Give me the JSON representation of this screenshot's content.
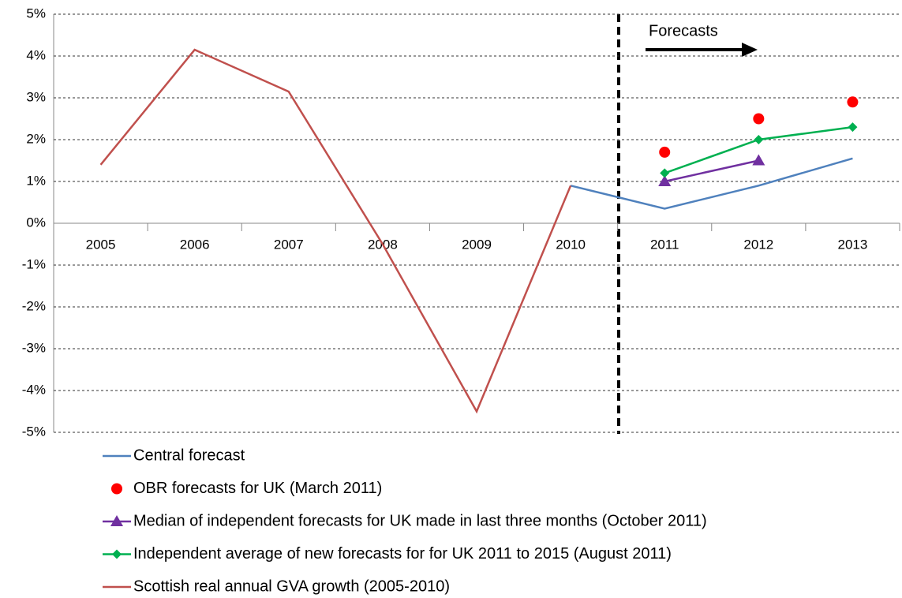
{
  "chart_data": {
    "type": "line",
    "annotation": "Forecasts",
    "categories": [
      "2005",
      "2006",
      "2007",
      "2008",
      "2009",
      "2010",
      "2011",
      "2012",
      "2013"
    ],
    "ylim": [
      -5,
      5
    ],
    "yticks": [
      {
        "value": -5,
        "label": "-5%"
      },
      {
        "value": -4,
        "label": "-4%"
      },
      {
        "value": -3,
        "label": "-3%"
      },
      {
        "value": -2,
        "label": "-2%"
      },
      {
        "value": -1,
        "label": "-1%"
      },
      {
        "value": 0,
        "label": "0%"
      },
      {
        "value": 1,
        "label": "1%"
      },
      {
        "value": 2,
        "label": "2%"
      },
      {
        "value": 3,
        "label": "3%"
      },
      {
        "value": 4,
        "label": "4%"
      },
      {
        "value": 5,
        "label": "5%"
      }
    ],
    "grid": true,
    "series": [
      {
        "name": "Central forecast",
        "color": "#4f81bd",
        "line": true,
        "marker": "none",
        "values": [
          null,
          null,
          null,
          null,
          null,
          0.9,
          0.35,
          0.9,
          1.55
        ]
      },
      {
        "name": "OBR forecasts for UK (March 2011)",
        "color": "#ff0000",
        "line": false,
        "marker": "circle",
        "values": [
          null,
          null,
          null,
          null,
          null,
          null,
          1.7,
          2.5,
          2.9
        ]
      },
      {
        "name": "Median of independent forecasts for UK made in last three months (October 2011)",
        "color": "#7030a0",
        "line": true,
        "marker": "triangle",
        "values": [
          null,
          null,
          null,
          null,
          null,
          null,
          1.0,
          1.5,
          null
        ]
      },
      {
        "name": "Independent average of new forecasts for for UK 2011 to 2015 (August 2011)",
        "color": "#00b050",
        "line": true,
        "marker": "diamond",
        "values": [
          null,
          null,
          null,
          null,
          null,
          null,
          1.2,
          2.0,
          2.3
        ]
      },
      {
        "name": "Scottish real annual GVA growth (2005-2010)",
        "color": "#c0504d",
        "line": true,
        "marker": "none",
        "values": [
          1.4,
          4.15,
          3.15,
          -0.5,
          -4.5,
          0.9,
          null,
          null,
          null
        ]
      }
    ]
  }
}
